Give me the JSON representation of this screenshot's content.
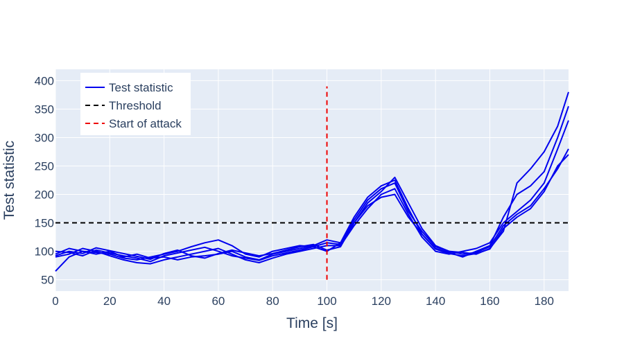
{
  "chart_data": {
    "type": "line",
    "title": "",
    "xlabel": "Time [s]",
    "ylabel": "Test statistic",
    "xlim": [
      0,
      189
    ],
    "ylim": [
      30,
      420
    ],
    "x_ticks": [
      0,
      20,
      40,
      60,
      80,
      100,
      120,
      140,
      160,
      180
    ],
    "y_ticks": [
      50,
      100,
      150,
      200,
      250,
      300,
      350,
      400
    ],
    "grid": true,
    "legend_placement": "top-left",
    "legend": [
      {
        "label": "Test statistic",
        "color": "#0000ee",
        "style": "solid"
      },
      {
        "label": "Threshold",
        "color": "#000000",
        "style": "dashed"
      },
      {
        "label": "Start of attack",
        "color": "#ee0000",
        "style": "dashed"
      }
    ],
    "threshold": {
      "y": 150,
      "color": "#000000"
    },
    "attack_start": {
      "x": 100,
      "y_range": [
        50,
        390
      ],
      "color": "#ee0000"
    },
    "series_color": "#0000ee",
    "series": [
      {
        "x": [
          0,
          5,
          10,
          15,
          20,
          25,
          30,
          35,
          40,
          45,
          50,
          55,
          60,
          65,
          70,
          75,
          80,
          85,
          90,
          95,
          100,
          105,
          110,
          115,
          120,
          125,
          130,
          135,
          140,
          145,
          150,
          155,
          160,
          165,
          170,
          175,
          180,
          185,
          189
        ],
        "y": [
          65,
          90,
          100,
          98,
          95,
          88,
          85,
          90,
          95,
          100,
          108,
          115,
          120,
          110,
          95,
          90,
          100,
          105,
          110,
          108,
          100,
          115,
          150,
          185,
          205,
          230,
          185,
          140,
          110,
          100,
          98,
          95,
          105,
          135,
          220,
          245,
          275,
          320,
          380
        ]
      },
      {
        "x": [
          0,
          5,
          10,
          15,
          20,
          25,
          30,
          35,
          40,
          45,
          50,
          55,
          60,
          65,
          70,
          75,
          80,
          85,
          90,
          95,
          100,
          105,
          110,
          115,
          120,
          125,
          130,
          135,
          140,
          145,
          150,
          155,
          160,
          165,
          170,
          175,
          180,
          185,
          189
        ],
        "y": [
          95,
          105,
          100,
          95,
          100,
          90,
          95,
          88,
          90,
          85,
          90,
          92,
          95,
          100,
          90,
          85,
          95,
          100,
          105,
          110,
          120,
          115,
          160,
          195,
          215,
          225,
          175,
          130,
          105,
          98,
          90,
          100,
          110,
          160,
          200,
          215,
          240,
          300,
          355
        ]
      },
      {
        "x": [
          0,
          5,
          10,
          15,
          20,
          25,
          30,
          35,
          40,
          45,
          50,
          55,
          60,
          65,
          70,
          75,
          80,
          85,
          90,
          95,
          100,
          105,
          110,
          115,
          120,
          125,
          130,
          135,
          140,
          145,
          150,
          155,
          160,
          165,
          170,
          175,
          180,
          185,
          189
        ],
        "y": [
          90,
          95,
          105,
          100,
          92,
          85,
          80,
          78,
          85,
          90,
          95,
          100,
          105,
          95,
          85,
          80,
          88,
          95,
          100,
          105,
          110,
          110,
          145,
          175,
          200,
          210,
          165,
          125,
          100,
          95,
          100,
          105,
          115,
          150,
          170,
          190,
          220,
          280,
          330
        ]
      },
      {
        "x": [
          0,
          5,
          10,
          15,
          20,
          25,
          30,
          35,
          40,
          45,
          50,
          55,
          60,
          65,
          70,
          75,
          80,
          85,
          90,
          95,
          100,
          105,
          110,
          115,
          120,
          125,
          130,
          135,
          140,
          145,
          150,
          155,
          160,
          165,
          170,
          175,
          180,
          185,
          189
        ],
        "y": [
          100,
          98,
          92,
          102,
          97,
          92,
          88,
          82,
          92,
          97,
          102,
          107,
          100,
          92,
          88,
          84,
          92,
          97,
          102,
          108,
          115,
          112,
          155,
          190,
          210,
          220,
          170,
          135,
          108,
          100,
          95,
          98,
          108,
          145,
          165,
          180,
          210,
          245,
          280
        ]
      },
      {
        "x": [
          0,
          5,
          10,
          15,
          20,
          25,
          30,
          35,
          40,
          45,
          50,
          55,
          60,
          65,
          70,
          75,
          80,
          85,
          90,
          95,
          100,
          105,
          110,
          115,
          120,
          125,
          130,
          135,
          140,
          145,
          150,
          155,
          160,
          165,
          170,
          175,
          180,
          185,
          189
        ],
        "y": [
          92,
          100,
          96,
          106,
          101,
          96,
          91,
          86,
          96,
          102,
          92,
          88,
          96,
          102,
          97,
          92,
          96,
          102,
          108,
          112,
          102,
          108,
          150,
          180,
          195,
          200,
          160,
          130,
          104,
          96,
          92,
          96,
          104,
          140,
          160,
          175,
          205,
          250,
          270
        ]
      }
    ]
  }
}
